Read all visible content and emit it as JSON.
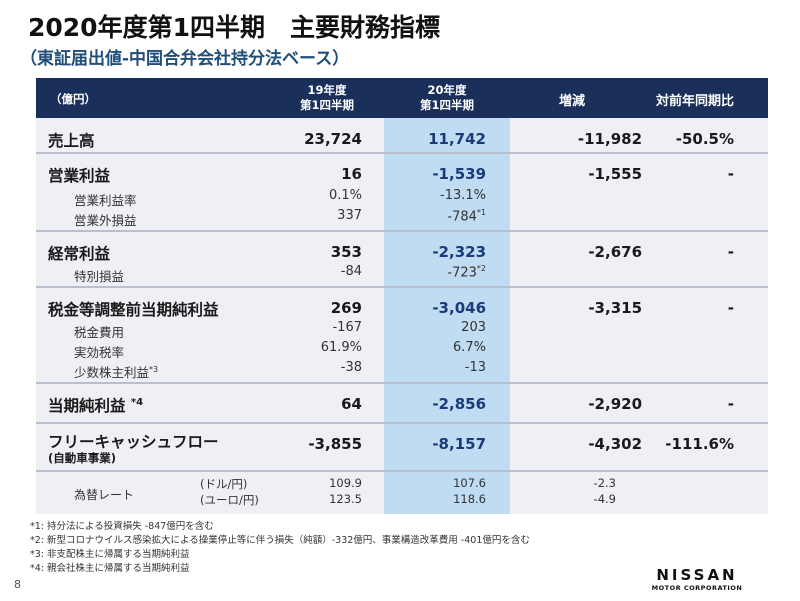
{
  "title": "2020年度第1四半期　主要財務指標",
  "subtitle": "（東証届出値-中国合弁会社持分法ベース）",
  "header": {
    "unit": "（億円）",
    "fy19_line1": "19年度",
    "fy19_line2": "第1四半期",
    "fy20_line1": "20年度",
    "fy20_line2": "第1四半期",
    "change": "増減",
    "yoy": "対前年同期比"
  },
  "rows": {
    "sales": {
      "label": "売上高",
      "fy19": "23,724",
      "fy20": "11,742",
      "change": "-11,982",
      "yoy": "-50.5%"
    },
    "op_profit": {
      "label": "営業利益",
      "fy19": "16",
      "fy20": "-1,539",
      "change": "-1,555",
      "yoy": "-"
    },
    "op_margin": {
      "label": "営業利益率",
      "fy19": "0.1%",
      "fy20": "-13.1%"
    },
    "non_op": {
      "label": "営業外損益",
      "fy19": "337",
      "fy20": "-784",
      "note": "*1"
    },
    "ord_profit": {
      "label": "経常利益",
      "fy19": "353",
      "fy20": "-2,323",
      "change": "-2,676",
      "yoy": "-"
    },
    "special": {
      "label": "特別損益",
      "fy19": "-84",
      "fy20": "-723",
      "note": "*2"
    },
    "pretax": {
      "label": "税金等調整前当期純利益",
      "fy19": "269",
      "fy20": "-3,046",
      "change": "-3,315",
      "yoy": "-"
    },
    "tax": {
      "label": "税金費用",
      "fy19": "-167",
      "fy20": "203"
    },
    "tax_rate": {
      "label": "実効税率",
      "fy19": "61.9%",
      "fy20": "6.7%"
    },
    "minority": {
      "label": "少数株主利益",
      "note": "*3",
      "fy19": "-38",
      "fy20": "-13"
    },
    "net_income": {
      "label": "当期純利益",
      "note": "*4",
      "fy19": "64",
      "fy20": "-2,856",
      "change": "-2,920",
      "yoy": "-"
    },
    "fcf": {
      "label": "フリーキャッシュフロー",
      "sublabel": "(自動車事業)",
      "fy19": "-3,855",
      "fy20": "-8,157",
      "change": "-4,302",
      "yoy": "-111.6%"
    },
    "fx": {
      "label": "為替レート",
      "usd_label": "(ドル/円)",
      "eur_label": "(ユーロ/円)",
      "usd_fy19": "109.9",
      "eur_fy19": "123.5",
      "usd_fy20": "107.6",
      "eur_fy20": "118.6",
      "usd_change": "-2.3",
      "eur_change": "-4.9"
    }
  },
  "footnotes": [
    "*1: 持分法による投資損失 -847億円を含む",
    "*2: 新型コロナウイルス感染拡大による操業停止等に伴う損失（純額）-332億円、事業構造改革費用 -401億円を含む",
    "*3: 非支配株主に帰属する当期純利益",
    "*4: 親会社株主に帰属する当期純利益"
  ],
  "page_number": "8",
  "logo": {
    "name": "NISSAN",
    "sub": "MOTOR CORPORATION"
  }
}
